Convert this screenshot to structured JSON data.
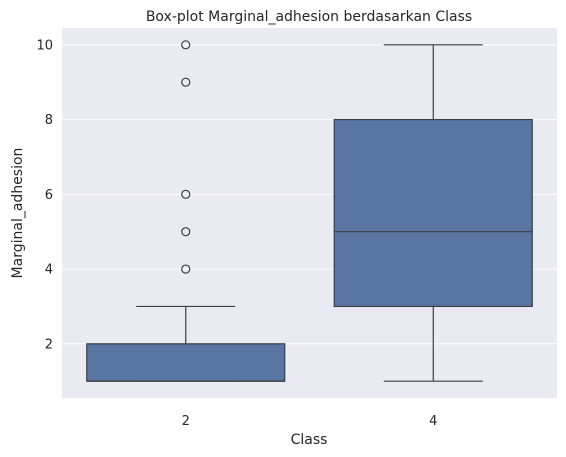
{
  "chart_data": {
    "type": "box",
    "title": "Box-plot Marginal_adhesion berdasarkan Class",
    "xlabel": "Class",
    "ylabel": "Marginal_adhesion",
    "ylim": [
      0.55,
      10.45
    ],
    "yticks": [
      "2",
      "4",
      "6",
      "8",
      "10"
    ],
    "grid": true,
    "colors": {
      "background": "#eaeaf2",
      "grid": "#ffffff",
      "box": "#5875a4",
      "line": "#3f3f3f"
    },
    "categories": [
      "2",
      "4"
    ],
    "boxes": [
      {
        "category": "2",
        "whisker_low": 1,
        "q1": 1,
        "median": 1,
        "q3": 2,
        "whisker_high": 3,
        "outliers": [
          4,
          5,
          6,
          9,
          10
        ]
      },
      {
        "category": "4",
        "whisker_low": 1,
        "q1": 3,
        "median": 5,
        "q3": 8,
        "whisker_high": 10,
        "outliers": []
      }
    ]
  }
}
